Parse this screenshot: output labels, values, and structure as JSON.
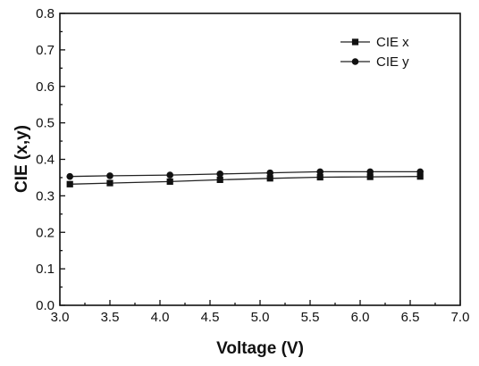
{
  "chart_data": {
    "type": "line",
    "xlabel": "Voltage (V)",
    "ylabel": "CIE (x,y)",
    "xlim": [
      3.0,
      7.0
    ],
    "ylim": [
      0.0,
      0.8
    ],
    "xticks": [
      "3.0",
      "3.5",
      "4.0",
      "4.5",
      "5.0",
      "5.5",
      "6.0",
      "6.5",
      "7.0"
    ],
    "yticks": [
      "0.0",
      "0.1",
      "0.2",
      "0.3",
      "0.4",
      "0.5",
      "0.6",
      "0.7",
      "0.8"
    ],
    "grid": false,
    "legend_position": "top-right",
    "x": [
      3.1,
      3.5,
      4.1,
      4.6,
      5.1,
      5.6,
      6.1,
      6.6
    ],
    "series": [
      {
        "name": "CIE x",
        "marker": "square",
        "values": [
          0.332,
          0.335,
          0.339,
          0.344,
          0.348,
          0.351,
          0.352,
          0.353
        ]
      },
      {
        "name": "CIE y",
        "marker": "circle",
        "values": [
          0.353,
          0.355,
          0.357,
          0.36,
          0.363,
          0.366,
          0.366,
          0.366
        ]
      }
    ]
  }
}
